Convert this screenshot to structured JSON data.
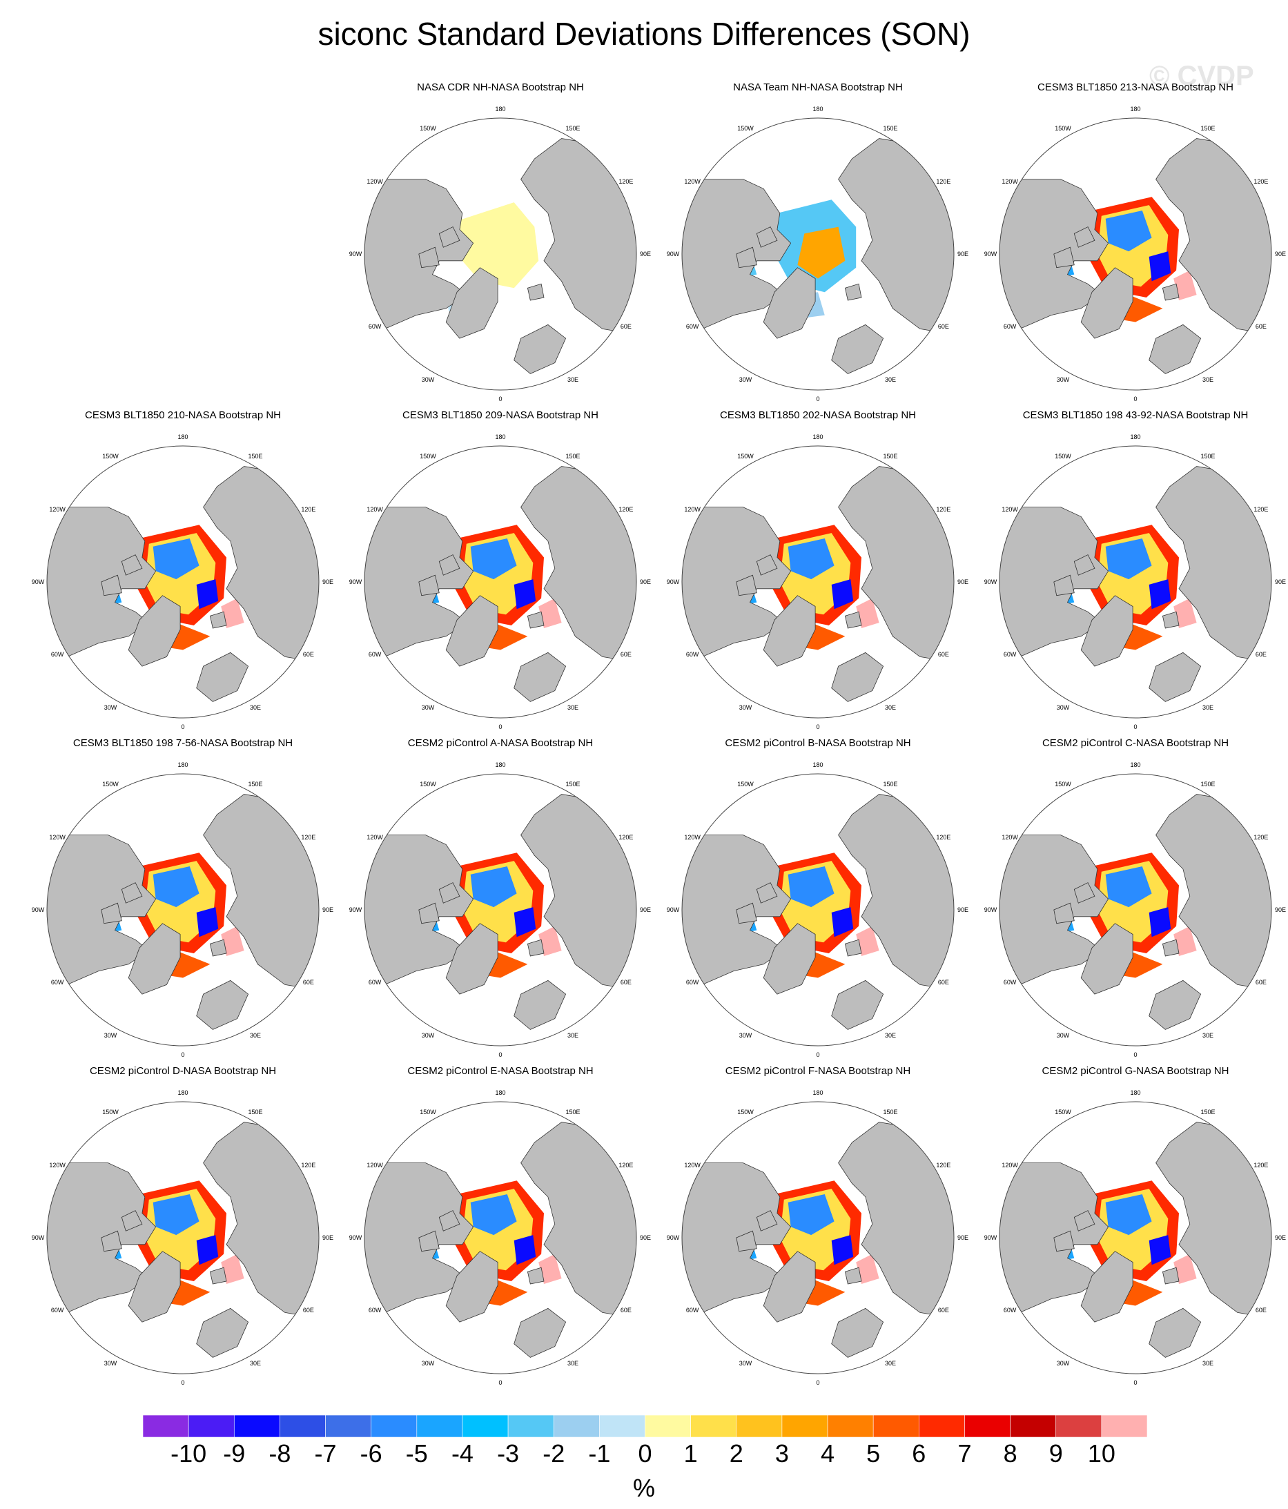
{
  "title": "siconc Standard Deviations Differences (SON)",
  "watermark": "© CVDP",
  "lon_labels": [
    "180",
    "150E",
    "120E",
    "90E",
    "60E",
    "30E",
    "0",
    "30W",
    "60W",
    "90W",
    "120W",
    "150W"
  ],
  "panels": [
    {
      "title": "",
      "empty": true
    },
    {
      "title": "NASA CDR NH-NASA Bootstrap NH",
      "pattern": "cdr"
    },
    {
      "title": "NASA Team NH-NASA Bootstrap NH",
      "pattern": "team"
    },
    {
      "title": "CESM3 BLT1850 213-NASA Bootstrap NH",
      "pattern": "model"
    },
    {
      "title": "CESM3 BLT1850 210-NASA Bootstrap NH",
      "pattern": "model"
    },
    {
      "title": "CESM3 BLT1850 209-NASA Bootstrap NH",
      "pattern": "model"
    },
    {
      "title": "CESM3 BLT1850 202-NASA Bootstrap NH",
      "pattern": "model"
    },
    {
      "title": "CESM3 BLT1850 198 43-92-NASA Bootstrap NH",
      "pattern": "model"
    },
    {
      "title": "CESM3 BLT1850 198 7-56-NASA Bootstrap NH",
      "pattern": "model"
    },
    {
      "title": "CESM2 piControl A-NASA Bootstrap NH",
      "pattern": "model"
    },
    {
      "title": "CESM2 piControl B-NASA Bootstrap NH",
      "pattern": "model"
    },
    {
      "title": "CESM2 piControl C-NASA Bootstrap NH",
      "pattern": "model"
    },
    {
      "title": "CESM2 piControl D-NASA Bootstrap NH",
      "pattern": "model"
    },
    {
      "title": "CESM2 piControl E-NASA Bootstrap NH",
      "pattern": "model"
    },
    {
      "title": "CESM2 piControl F-NASA Bootstrap NH",
      "pattern": "model"
    },
    {
      "title": "CESM2 piControl G-NASA Bootstrap NH",
      "pattern": "model"
    }
  ],
  "colorbar": {
    "units": "%",
    "labels": [
      "-10",
      "-9",
      "-8",
      "-7",
      "-6",
      "-5",
      "-4",
      "-3",
      "-2",
      "-1",
      "0",
      "1",
      "2",
      "3",
      "4",
      "5",
      "6",
      "7",
      "8",
      "9",
      "10"
    ],
    "colors": [
      "#8a2be2",
      "#4b1cf5",
      "#0a0aff",
      "#2d4fe6",
      "#3d6fe8",
      "#2a8cff",
      "#1aa5ff",
      "#00c0ff",
      "#55c8f5",
      "#9ccff0",
      "#c0e4f7",
      "#fffaa0",
      "#ffe04a",
      "#ffc21e",
      "#ffa500",
      "#ff8000",
      "#ff5a00",
      "#ff2a00",
      "#ea0000",
      "#c40000",
      "#dc4040",
      "#ffb0b0"
    ]
  }
}
